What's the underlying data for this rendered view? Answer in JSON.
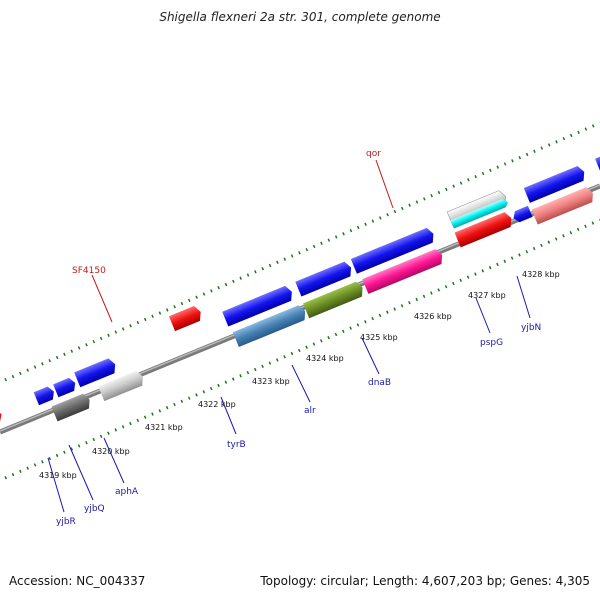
{
  "title": "Shigella flexneri 2a str. 301, complete genome",
  "footer": {
    "accession": "Accession: NC_004337",
    "stats": "Topology: circular; Length: 4,607,203 bp; Genes: 4,305"
  },
  "colors": {
    "backbone": "#8a8a8a",
    "tick": "#1a7a1a",
    "label_blue": "#1a1aa8",
    "label_red": "#c41a1a"
  },
  "scale_labels": [
    "4319 kbp",
    "4320 kbp",
    "4321 kbp",
    "4322 kbp",
    "4323 kbp",
    "4324 kbp",
    "4325 kbp",
    "4326 kbp",
    "4327 kbp",
    "4328 kbp"
  ],
  "gene_labels": [
    {
      "name": "yjbR",
      "color": "blue"
    },
    {
      "name": "yjbQ",
      "color": "blue"
    },
    {
      "name": "aphA",
      "color": "blue"
    },
    {
      "name": "tyrB",
      "color": "blue"
    },
    {
      "name": "alr",
      "color": "blue"
    },
    {
      "name": "dnaB",
      "color": "blue"
    },
    {
      "name": "pspG",
      "color": "blue"
    },
    {
      "name": "yjbN",
      "color": "blue"
    },
    {
      "name": "SF4150",
      "color": "red"
    },
    {
      "name": "qor",
      "color": "red"
    }
  ]
}
